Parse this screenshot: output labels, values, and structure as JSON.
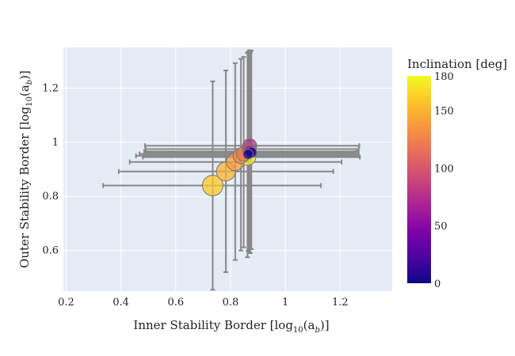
{
  "chart_data": {
    "type": "scatter",
    "title": "",
    "xlabel_main": "Inner Stability Border [log",
    "ylabel_main": "Outer Stability Border [log",
    "label_sub": "10",
    "label_arg": "(a",
    "label_arg_sub": "b",
    "label_close": ")]",
    "xlim": [
      0.19,
      1.39
    ],
    "ylim": [
      0.45,
      1.35
    ],
    "xticks": [
      "0.2",
      "0.4",
      "0.6",
      "0.8",
      "1",
      "1.2"
    ],
    "xtick_values": [
      0.2,
      0.4,
      0.6,
      0.8,
      1.0,
      1.2
    ],
    "yticks": [
      "0.6",
      "0.8",
      "1",
      "1.2"
    ],
    "ytick_values": [
      0.6,
      0.8,
      1.0,
      1.2
    ],
    "grid": true,
    "colorbar": {
      "title": "Inclination [deg]",
      "min": 0,
      "max": 180,
      "ticks": [
        "0",
        "50",
        "100",
        "150",
        "180"
      ],
      "tick_values": [
        0,
        50,
        100,
        150,
        180
      ],
      "colorscale": "plasma"
    },
    "colors": {
      "plot_bg": "#e5ecf6",
      "grid": "#ffffff",
      "error_bar": "#888888",
      "marker_outline": "#777777"
    },
    "points": [
      {
        "x": 0.735,
        "y": 0.84,
        "x_err": [
          0.335,
          1.13
        ],
        "y_err": [
          0.455,
          1.225
        ],
        "inclination": 160,
        "size": 1.0
      },
      {
        "x": 0.783,
        "y": 0.892,
        "x_err": [
          0.392,
          1.175
        ],
        "y_err": [
          0.52,
          1.265
        ],
        "inclination": 150,
        "size": 0.92
      },
      {
        "x": 0.817,
        "y": 0.927,
        "x_err": [
          0.432,
          1.205
        ],
        "y_err": [
          0.565,
          1.292
        ],
        "inclination": 140,
        "size": 0.84
      },
      {
        "x": 0.838,
        "y": 0.95,
        "x_err": [
          0.455,
          1.262
        ],
        "y_err": [
          0.6,
          1.308
        ],
        "inclination": 130,
        "size": 0.76
      },
      {
        "x": 0.848,
        "y": 0.957,
        "x_err": [
          0.468,
          1.268
        ],
        "y_err": [
          0.612,
          1.315
        ],
        "inclination": 120,
        "size": 0.7
      },
      {
        "x": 0.862,
        "y": 0.945,
        "x_err": [
          0.48,
          1.272
        ],
        "y_err": [
          0.575,
          1.33
        ],
        "inclination": 175,
        "size": 0.8
      },
      {
        "x": 0.87,
        "y": 0.987,
        "x_err": [
          0.488,
          1.27
        ],
        "y_err": [
          0.592,
          1.34
        ],
        "inclination": 75,
        "size": 0.68
      },
      {
        "x": 0.866,
        "y": 0.975,
        "x_err": [
          0.49,
          1.268
        ],
        "y_err": [
          0.6,
          1.335
        ],
        "inclination": 90,
        "size": 0.62
      },
      {
        "x": 0.872,
        "y": 0.966,
        "x_err": [
          0.485,
          1.265
        ],
        "y_err": [
          0.59,
          1.33
        ],
        "inclination": 30,
        "size": 0.56
      },
      {
        "x": 0.876,
        "y": 0.962,
        "x_err": [
          0.492,
          1.258
        ],
        "y_err": [
          0.605,
          1.338
        ],
        "inclination": 10,
        "size": 0.52
      },
      {
        "x": 0.864,
        "y": 0.956,
        "x_err": [
          0.486,
          1.25
        ],
        "y_err": [
          0.598,
          1.332
        ],
        "inclination": 3,
        "size": 0.48
      }
    ]
  }
}
